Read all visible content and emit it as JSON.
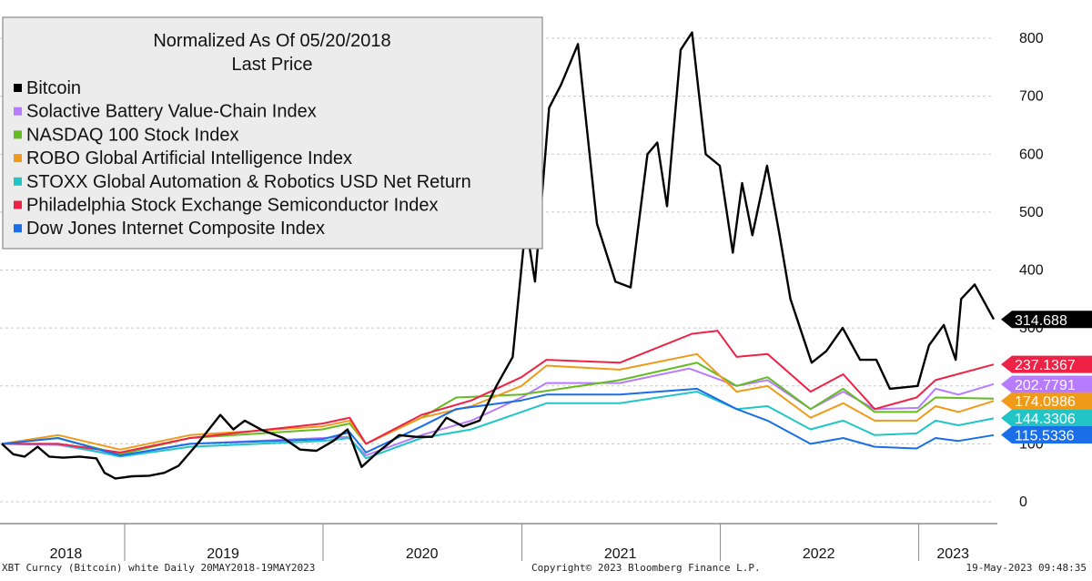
{
  "chart_data": {
    "type": "line",
    "title": "Normalized As Of 05/20/2018",
    "subtitle": "Last Price",
    "x_range": [
      "2018-05-20",
      "2023-05-19"
    ],
    "ylim": [
      -30,
      840
    ],
    "y_ticks": [
      0,
      100,
      200,
      300,
      400,
      500,
      600,
      700,
      800
    ],
    "x_year_labels": [
      {
        "label": "2018",
        "date": "2018-09-15"
      },
      {
        "label": "2019",
        "date": "2019-07-01"
      },
      {
        "label": "2020",
        "date": "2020-07-01"
      },
      {
        "label": "2021",
        "date": "2021-07-01"
      },
      {
        "label": "2022",
        "date": "2022-07-01"
      },
      {
        "label": "2023",
        "date": "2023-03-05"
      }
    ],
    "x_year_boundaries": [
      "2019-01-01",
      "2020-01-01",
      "2021-01-01",
      "2022-01-01",
      "2023-01-01"
    ],
    "grid": "horizontal dashed",
    "legend_placement": "top-left",
    "series": [
      {
        "name": "Bitcoin",
        "color": "#000000",
        "last_value": "314.688",
        "last": 314.688,
        "points": [
          [
            "2018-05-20",
            100
          ],
          [
            "2018-06-10",
            82
          ],
          [
            "2018-07-01",
            78
          ],
          [
            "2018-07-25",
            95
          ],
          [
            "2018-08-15",
            78
          ],
          [
            "2018-09-10",
            76
          ],
          [
            "2018-10-10",
            78
          ],
          [
            "2018-11-10",
            75
          ],
          [
            "2018-11-25",
            50
          ],
          [
            "2018-12-15",
            40
          ],
          [
            "2019-01-15",
            44
          ],
          [
            "2019-02-15",
            45
          ],
          [
            "2019-03-15",
            50
          ],
          [
            "2019-04-10",
            62
          ],
          [
            "2019-05-15",
            100
          ],
          [
            "2019-06-26",
            150
          ],
          [
            "2019-07-20",
            125
          ],
          [
            "2019-08-10",
            140
          ],
          [
            "2019-09-10",
            124
          ],
          [
            "2019-10-20",
            110
          ],
          [
            "2019-11-20",
            90
          ],
          [
            "2019-12-20",
            88
          ],
          [
            "2020-01-20",
            105
          ],
          [
            "2020-02-15",
            125
          ],
          [
            "2020-03-12",
            60
          ],
          [
            "2020-04-10",
            85
          ],
          [
            "2020-05-20",
            115
          ],
          [
            "2020-06-20",
            112
          ],
          [
            "2020-07-20",
            112
          ],
          [
            "2020-08-15",
            145
          ],
          [
            "2020-09-15",
            130
          ],
          [
            "2020-10-15",
            140
          ],
          [
            "2020-11-15",
            200
          ],
          [
            "2020-12-15",
            250
          ],
          [
            "2021-01-08",
            480
          ],
          [
            "2021-01-25",
            380
          ],
          [
            "2021-02-20",
            680
          ],
          [
            "2021-03-14",
            720
          ],
          [
            "2021-04-14",
            790
          ],
          [
            "2021-05-19",
            480
          ],
          [
            "2021-06-22",
            380
          ],
          [
            "2021-07-20",
            370
          ],
          [
            "2021-08-20",
            600
          ],
          [
            "2021-09-07",
            620
          ],
          [
            "2021-09-25",
            510
          ],
          [
            "2021-10-20",
            780
          ],
          [
            "2021-11-10",
            810
          ],
          [
            "2021-12-05",
            600
          ],
          [
            "2021-12-31",
            580
          ],
          [
            "2022-01-24",
            430
          ],
          [
            "2022-02-10",
            550
          ],
          [
            "2022-03-01",
            460
          ],
          [
            "2022-03-28",
            580
          ],
          [
            "2022-04-20",
            460
          ],
          [
            "2022-05-10",
            350
          ],
          [
            "2022-06-18",
            240
          ],
          [
            "2022-07-15",
            260
          ],
          [
            "2022-08-14",
            300
          ],
          [
            "2022-09-15",
            245
          ],
          [
            "2022-10-15",
            245
          ],
          [
            "2022-11-09",
            195
          ],
          [
            "2022-12-30",
            200
          ],
          [
            "2023-01-20",
            270
          ],
          [
            "2023-02-16",
            305
          ],
          [
            "2023-03-10",
            245
          ],
          [
            "2023-03-20",
            350
          ],
          [
            "2023-04-14",
            375
          ],
          [
            "2023-05-19",
            315
          ]
        ]
      },
      {
        "name": "Solactive Battery Value-Chain Index",
        "color": "#b77bff",
        "last_value": "202.7791",
        "last": 202.7791,
        "points": [
          [
            "2018-05-20",
            100
          ],
          [
            "2018-09-01",
            98
          ],
          [
            "2018-12-24",
            80
          ],
          [
            "2019-05-01",
            100
          ],
          [
            "2019-12-31",
            110
          ],
          [
            "2020-02-15",
            112
          ],
          [
            "2020-03-20",
            80
          ],
          [
            "2020-06-30",
            115
          ],
          [
            "2020-09-30",
            140
          ],
          [
            "2020-12-31",
            180
          ],
          [
            "2021-02-15",
            205
          ],
          [
            "2021-06-30",
            205
          ],
          [
            "2021-11-05",
            230
          ],
          [
            "2022-01-31",
            200
          ],
          [
            "2022-03-29",
            210
          ],
          [
            "2022-06-16",
            160
          ],
          [
            "2022-08-15",
            190
          ],
          [
            "2022-10-12",
            160
          ],
          [
            "2022-12-31",
            162
          ],
          [
            "2023-02-01",
            195
          ],
          [
            "2023-03-15",
            185
          ],
          [
            "2023-05-19",
            203
          ]
        ]
      },
      {
        "name": "NASDAQ 100 Stock Index",
        "color": "#66bb22",
        "last_value": "",
        "last": 178,
        "points": [
          [
            "2018-05-20",
            100
          ],
          [
            "2018-08-30",
            110
          ],
          [
            "2018-12-24",
            82
          ],
          [
            "2019-05-01",
            110
          ],
          [
            "2019-12-31",
            125
          ],
          [
            "2020-02-19",
            135
          ],
          [
            "2020-03-20",
            100
          ],
          [
            "2020-06-30",
            145
          ],
          [
            "2020-09-02",
            180
          ],
          [
            "2020-12-31",
            185
          ],
          [
            "2021-06-30",
            210
          ],
          [
            "2021-11-19",
            240
          ],
          [
            "2022-01-31",
            200
          ],
          [
            "2022-03-29",
            215
          ],
          [
            "2022-06-16",
            160
          ],
          [
            "2022-08-15",
            195
          ],
          [
            "2022-10-12",
            155
          ],
          [
            "2022-12-28",
            155
          ],
          [
            "2023-02-01",
            180
          ],
          [
            "2023-05-19",
            178
          ]
        ]
      },
      {
        "name": "ROBO Global Artificial Intelligence Index",
        "color": "#f09a1a",
        "last_value": "174.0986",
        "last": 174.0986,
        "points": [
          [
            "2018-05-20",
            100
          ],
          [
            "2018-09-01",
            115
          ],
          [
            "2018-12-24",
            90
          ],
          [
            "2019-05-01",
            115
          ],
          [
            "2019-12-31",
            130
          ],
          [
            "2020-02-19",
            140
          ],
          [
            "2020-03-20",
            100
          ],
          [
            "2020-06-30",
            145
          ],
          [
            "2020-09-30",
            165
          ],
          [
            "2020-12-31",
            200
          ],
          [
            "2021-02-15",
            235
          ],
          [
            "2021-06-30",
            228
          ],
          [
            "2021-11-19",
            255
          ],
          [
            "2022-01-31",
            190
          ],
          [
            "2022-03-29",
            200
          ],
          [
            "2022-06-16",
            145
          ],
          [
            "2022-08-15",
            170
          ],
          [
            "2022-10-12",
            140
          ],
          [
            "2022-12-28",
            140
          ],
          [
            "2023-02-01",
            165
          ],
          [
            "2023-03-15",
            155
          ],
          [
            "2023-05-19",
            174
          ]
        ]
      },
      {
        "name": "STOXX Global Automation & Robotics USD Net Return",
        "color": "#22c5c5",
        "last_value": "144.3306",
        "last": 144.3306,
        "points": [
          [
            "2018-05-20",
            100
          ],
          [
            "2018-09-01",
            100
          ],
          [
            "2018-12-24",
            78
          ],
          [
            "2019-05-01",
            95
          ],
          [
            "2019-12-31",
            105
          ],
          [
            "2020-02-19",
            110
          ],
          [
            "2020-03-20",
            75
          ],
          [
            "2020-06-30",
            110
          ],
          [
            "2020-09-30",
            125
          ],
          [
            "2020-12-31",
            155
          ],
          [
            "2021-02-15",
            170
          ],
          [
            "2021-06-30",
            170
          ],
          [
            "2021-11-19",
            190
          ],
          [
            "2022-01-31",
            160
          ],
          [
            "2022-03-29",
            165
          ],
          [
            "2022-06-16",
            125
          ],
          [
            "2022-08-15",
            140
          ],
          [
            "2022-10-12",
            115
          ],
          [
            "2022-12-28",
            118
          ],
          [
            "2023-02-01",
            140
          ],
          [
            "2023-03-15",
            132
          ],
          [
            "2023-05-19",
            144
          ]
        ]
      },
      {
        "name": "Philadelphia Stock Exchange Semiconductor Index",
        "color": "#ee2244",
        "last_value": "237.1367",
        "last": 237.1367,
        "points": [
          [
            "2018-05-20",
            100
          ],
          [
            "2018-09-01",
            100
          ],
          [
            "2018-12-24",
            85
          ],
          [
            "2019-05-01",
            110
          ],
          [
            "2019-12-31",
            135
          ],
          [
            "2020-02-19",
            145
          ],
          [
            "2020-03-20",
            100
          ],
          [
            "2020-06-30",
            150
          ],
          [
            "2020-09-30",
            175
          ],
          [
            "2020-12-31",
            215
          ],
          [
            "2021-02-15",
            245
          ],
          [
            "2021-06-30",
            240
          ],
          [
            "2021-11-10",
            290
          ],
          [
            "2021-12-27",
            295
          ],
          [
            "2022-01-31",
            250
          ],
          [
            "2022-03-29",
            255
          ],
          [
            "2022-06-16",
            190
          ],
          [
            "2022-08-15",
            220
          ],
          [
            "2022-10-12",
            160
          ],
          [
            "2022-12-28",
            180
          ],
          [
            "2023-02-01",
            210
          ],
          [
            "2023-05-19",
            237
          ]
        ]
      },
      {
        "name": "Dow Jones Internet Composite Index",
        "color": "#1a6ee8",
        "last_value": "115.5336",
        "last": 115.5336,
        "points": [
          [
            "2018-05-20",
            100
          ],
          [
            "2018-09-01",
            110
          ],
          [
            "2018-12-24",
            80
          ],
          [
            "2019-05-01",
            100
          ],
          [
            "2019-12-31",
            108
          ],
          [
            "2020-02-19",
            120
          ],
          [
            "2020-03-20",
            85
          ],
          [
            "2020-06-30",
            130
          ],
          [
            "2020-09-02",
            160
          ],
          [
            "2020-12-31",
            175
          ],
          [
            "2021-02-15",
            185
          ],
          [
            "2021-06-30",
            185
          ],
          [
            "2021-11-19",
            195
          ],
          [
            "2022-01-31",
            160
          ],
          [
            "2022-03-29",
            140
          ],
          [
            "2022-06-16",
            100
          ],
          [
            "2022-08-15",
            110
          ],
          [
            "2022-10-12",
            95
          ],
          [
            "2022-12-28",
            92
          ],
          [
            "2023-02-01",
            110
          ],
          [
            "2023-03-15",
            105
          ],
          [
            "2023-05-19",
            115
          ]
        ]
      }
    ]
  },
  "footer": {
    "left": "XBT Curncy (Bitcoin) white  Daily 20MAY2018-19MAY2023",
    "center": "Copyright© 2023 Bloomberg Finance L.P.",
    "right": "19-May-2023 09:48:35"
  }
}
